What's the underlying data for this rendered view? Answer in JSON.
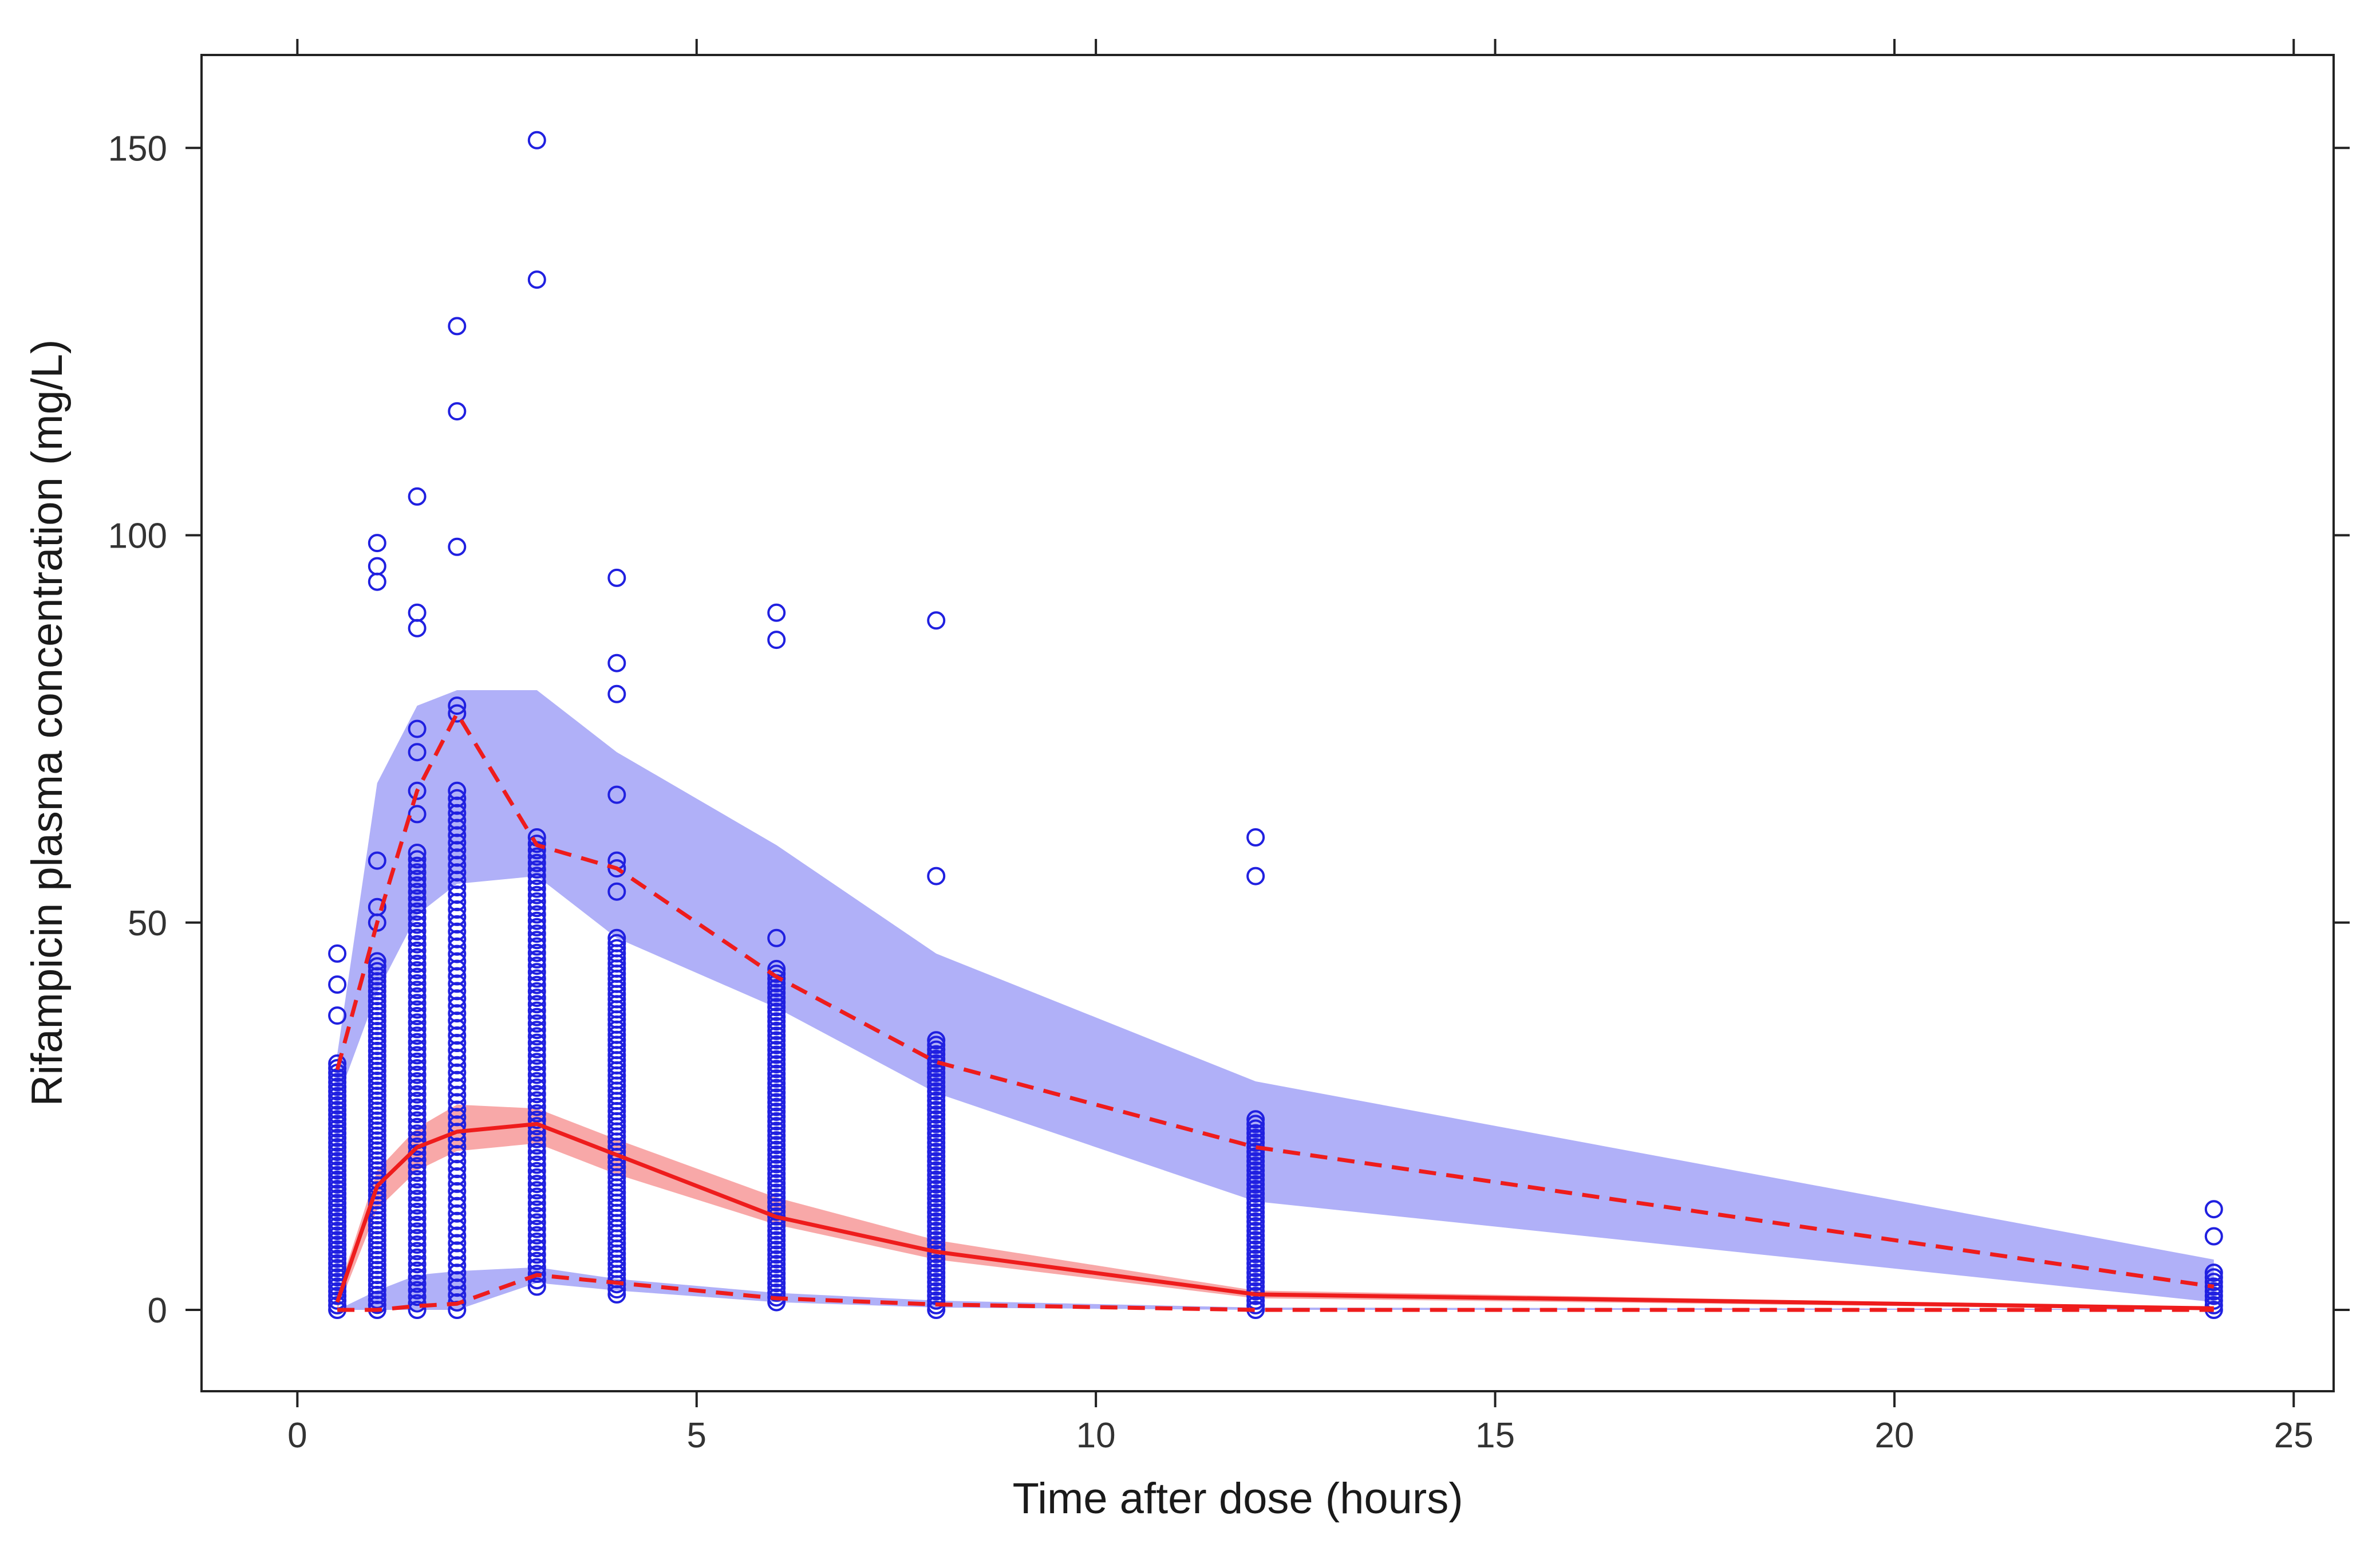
{
  "chart_data": {
    "type": "scatter",
    "title": "",
    "xlabel": "Time after dose (hours)",
    "ylabel": "Rifampicin plasma concentration (mg/L)",
    "xlim": [
      -1.2,
      25.5
    ],
    "ylim": [
      -10.5,
      162
    ],
    "xticks": [
      0,
      5,
      10,
      15,
      20,
      25
    ],
    "yticks": [
      0,
      50,
      100,
      150
    ],
    "xtick_labels": [
      "0",
      "5",
      "10",
      "15",
      "20",
      "25"
    ],
    "ytick_labels": [
      "0",
      "50",
      "100",
      "150"
    ],
    "grid": false,
    "colors": {
      "observed": "#2020e0",
      "pi_outer_band": "#b0b0f8",
      "pi_median_band": "#f8a8a8",
      "observed_percentile_lines": "#ee1c1c"
    },
    "series": [
      {
        "name": "Simulated 95th percentile CI band",
        "kind": "band",
        "x": [
          0.5,
          1,
          1.5,
          2,
          3,
          4,
          6,
          8,
          12,
          24
        ],
        "lower": [
          27,
          41,
          51,
          55,
          56,
          48,
          39,
          28,
          14,
          1
        ],
        "upper": [
          33,
          68,
          78,
          80,
          80,
          72,
          60,
          46,
          29.5,
          6.5
        ]
      },
      {
        "name": "Simulated median CI band",
        "kind": "band",
        "x": [
          0.5,
          1,
          1.5,
          2,
          3,
          4,
          6,
          8,
          12,
          24
        ],
        "lower": [
          0,
          13,
          18,
          20.5,
          21.5,
          17.5,
          11,
          6.5,
          1.5,
          0
        ],
        "upper": [
          2,
          18,
          23.5,
          26.5,
          26,
          22,
          14.5,
          9,
          2.5,
          0.3
        ]
      },
      {
        "name": "Simulated 5th percentile CI band",
        "kind": "band",
        "x": [
          0.5,
          1,
          1.5,
          2,
          3,
          4,
          6,
          8,
          12,
          24
        ],
        "lower": [
          0,
          0,
          0,
          0,
          3.5,
          2.5,
          1,
          0.3,
          0,
          0
        ],
        "upper": [
          0,
          2.5,
          4.5,
          5,
          5.5,
          4,
          2.2,
          1.2,
          0.3,
          0.1
        ]
      },
      {
        "name": "Observed 95th percentile",
        "kind": "line",
        "style": "dashed",
        "x": [
          0.5,
          1,
          1.5,
          2,
          3,
          4,
          6,
          8,
          12,
          24
        ],
        "y": [
          31,
          50,
          67,
          77,
          60,
          57,
          43,
          32,
          21,
          3
        ]
      },
      {
        "name": "Observed median",
        "kind": "line",
        "style": "solid",
        "x": [
          0.5,
          1,
          1.5,
          2,
          3,
          4,
          6,
          8,
          12,
          24
        ],
        "y": [
          1,
          16,
          21,
          23,
          24,
          20,
          12,
          7.5,
          2,
          0.2
        ]
      },
      {
        "name": "Observed 5th percentile",
        "kind": "line",
        "style": "dashed",
        "x": [
          0.5,
          1,
          1.5,
          2,
          3,
          4,
          6,
          8,
          12,
          24
        ],
        "y": [
          0,
          0,
          0.5,
          0.8,
          4.5,
          3.5,
          1.5,
          0.7,
          0,
          0
        ]
      },
      {
        "name": "Observed concentrations",
        "kind": "points",
        "groups": [
          {
            "x": 0.5,
            "dense": [
              0,
              32
            ],
            "extra": [
              38,
              42,
              46
            ]
          },
          {
            "x": 1,
            "dense": [
              0,
              45
            ],
            "extra": [
              50,
              52,
              58,
              94,
              96,
              99
            ]
          },
          {
            "x": 1.5,
            "dense": [
              0,
              59
            ],
            "extra": [
              64,
              67,
              72,
              75,
              88,
              90,
              105
            ]
          },
          {
            "x": 2,
            "dense": [
              0,
              67
            ],
            "extra": [
              77,
              78,
              98.5,
              116,
              127
            ]
          },
          {
            "x": 3,
            "dense": [
              3,
              61
            ],
            "extra": [
              133,
              151
            ]
          },
          {
            "x": 4,
            "dense": [
              2,
              48
            ],
            "extra": [
              54,
              57,
              58,
              66.5,
              79.5,
              83.5,
              94.5
            ]
          },
          {
            "x": 6,
            "dense": [
              1,
              44
            ],
            "extra": [
              48,
              86.5,
              90
            ]
          },
          {
            "x": 8,
            "dense": [
              0,
              35
            ],
            "extra": [
              56,
              89
            ]
          },
          {
            "x": 12,
            "dense": [
              0,
              25
            ],
            "extra": [
              56,
              61
            ]
          },
          {
            "x": 24,
            "dense": [
              0,
              5
            ],
            "extra": [
              9.5,
              13
            ]
          }
        ]
      }
    ]
  }
}
